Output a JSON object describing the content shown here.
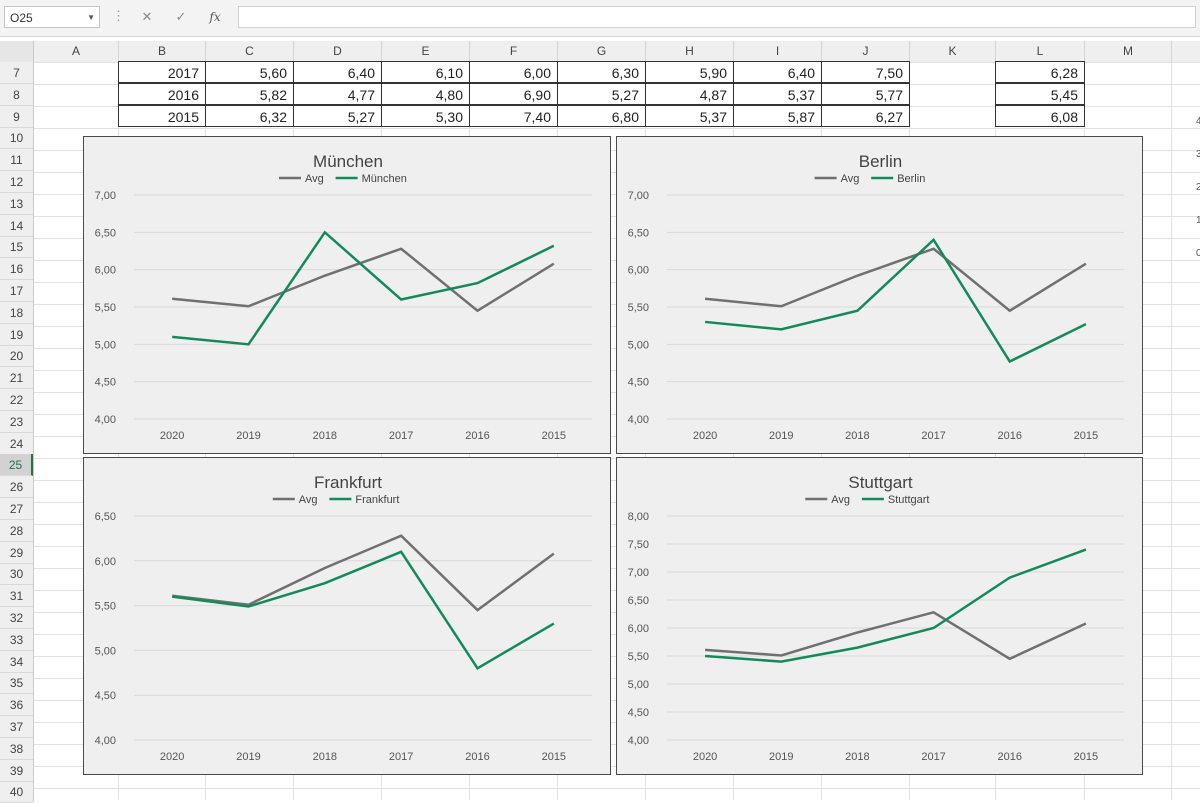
{
  "formula_bar": {
    "name_box": "O25",
    "cancel_icon": "✕",
    "enter_icon": "✓",
    "fx_label": "fx",
    "formula": ""
  },
  "columns": [
    "A",
    "B",
    "C",
    "D",
    "E",
    "F",
    "G",
    "H",
    "I",
    "J",
    "K",
    "L",
    "M"
  ],
  "rows": [
    "7",
    "8",
    "9",
    "10",
    "11",
    "12",
    "13",
    "14",
    "15",
    "16",
    "17",
    "18",
    "19",
    "20",
    "21",
    "22",
    "23",
    "24",
    "25",
    "26",
    "27",
    "28",
    "29",
    "30",
    "31",
    "32",
    "33",
    "34",
    "35",
    "36",
    "37",
    "38",
    "39",
    "40"
  ],
  "selected_row": "25",
  "table": [
    {
      "year": "2017",
      "values": [
        "5,60",
        "6,40",
        "6,10",
        "6,00",
        "6,30",
        "5,90",
        "6,40",
        "7,50"
      ],
      "avg": "6,28"
    },
    {
      "year": "2016",
      "values": [
        "5,82",
        "4,77",
        "4,80",
        "6,90",
        "5,27",
        "4,87",
        "5,37",
        "5,77"
      ],
      "avg": "5,45"
    },
    {
      "year": "2015",
      "values": [
        "6,32",
        "5,27",
        "5,30",
        "7,40",
        "6,80",
        "5,37",
        "5,87",
        "6,27"
      ],
      "avg": "6,08"
    }
  ],
  "right_edge_labels": [
    "4",
    "3",
    "2",
    "1",
    "0"
  ],
  "colors": {
    "avg": "#707070",
    "city": "#138a5a",
    "grid": "#d9d9d9",
    "accent": "#217346"
  },
  "chart_data": [
    {
      "type": "line",
      "title": "München",
      "categories": [
        "2020",
        "2019",
        "2018",
        "2017",
        "2016",
        "2015"
      ],
      "series": [
        {
          "name": "Avg",
          "values": [
            5.61,
            5.51,
            5.92,
            6.28,
            5.45,
            6.08
          ]
        },
        {
          "name": "München",
          "values": [
            5.1,
            5.0,
            6.5,
            5.6,
            5.82,
            6.32
          ]
        }
      ],
      "ylim": [
        4.0,
        7.0
      ],
      "yticks": [
        "4,00",
        "4,50",
        "5,00",
        "5,50",
        "6,00",
        "6,50",
        "7,00"
      ],
      "legend": "top"
    },
    {
      "type": "line",
      "title": "Berlin",
      "categories": [
        "2020",
        "2019",
        "2018",
        "2017",
        "2016",
        "2015"
      ],
      "series": [
        {
          "name": "Avg",
          "values": [
            5.61,
            5.51,
            5.92,
            6.28,
            5.45,
            6.08
          ]
        },
        {
          "name": "Berlin",
          "values": [
            5.3,
            5.2,
            5.45,
            6.4,
            4.77,
            5.27
          ]
        }
      ],
      "ylim": [
        4.0,
        7.0
      ],
      "yticks": [
        "4,00",
        "4,50",
        "5,00",
        "5,50",
        "6,00",
        "6,50",
        "7,00"
      ],
      "legend": "top"
    },
    {
      "type": "line",
      "title": "Frankfurt",
      "categories": [
        "2020",
        "2019",
        "2018",
        "2017",
        "2016",
        "2015"
      ],
      "series": [
        {
          "name": "Avg",
          "values": [
            5.61,
            5.51,
            5.92,
            6.28,
            5.45,
            6.08
          ]
        },
        {
          "name": "Frankfurt",
          "values": [
            5.6,
            5.49,
            5.75,
            6.1,
            4.8,
            5.3
          ]
        }
      ],
      "ylim": [
        4.0,
        6.5
      ],
      "yticks": [
        "4,00",
        "4,50",
        "5,00",
        "5,50",
        "6,00",
        "6,50"
      ],
      "legend": "top"
    },
    {
      "type": "line",
      "title": "Stuttgart",
      "categories": [
        "2020",
        "2019",
        "2018",
        "2017",
        "2016",
        "2015"
      ],
      "series": [
        {
          "name": "Avg",
          "values": [
            5.61,
            5.51,
            5.92,
            6.28,
            5.45,
            6.08
          ]
        },
        {
          "name": "Stuttgart",
          "values": [
            5.5,
            5.4,
            5.65,
            6.0,
            6.9,
            7.4
          ]
        }
      ],
      "ylim": [
        4.0,
        8.0
      ],
      "yticks": [
        "4,00",
        "4,50",
        "5,00",
        "5,50",
        "6,00",
        "6,50",
        "7,00",
        "7,50",
        "8,00"
      ],
      "legend": "top"
    }
  ]
}
